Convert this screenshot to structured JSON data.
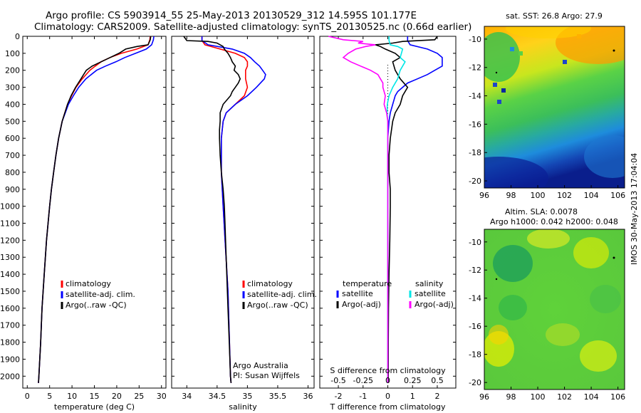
{
  "header": {
    "line1": "Argo profile: CS 5903914_55 25-May-2013 20130529_312 14.595S 101.177E",
    "line2": "Climatology: CARS2009. Satellite-adjusted climatology: synTS_20130525.nc (0.66d earlier)"
  },
  "colors": {
    "climatology": "#ff0000",
    "satellite": "#0000ff",
    "argo": "#000000",
    "argo_s": "#ff00ff",
    "satellite_s": "#00e6e6"
  },
  "chart_data": [
    {
      "id": "temperature",
      "type": "line",
      "xlabel": "temperature (deg C)",
      "ylabel": "",
      "xlim": [
        -1,
        31
      ],
      "ylim": [
        2070,
        0
      ],
      "xticks": [
        "0",
        "5",
        "10",
        "15",
        "20",
        "25",
        "30"
      ],
      "yticks": [
        "0",
        "100",
        "200",
        "300",
        "400",
        "500",
        "600",
        "700",
        "800",
        "900",
        "1000",
        "1100",
        "1200",
        "1300",
        "1400",
        "1500",
        "1600",
        "1700",
        "1800",
        "1900",
        "2000"
      ],
      "legend": [
        "climatology",
        "satellite-adj. clim.",
        "Argo(..raw -QC)"
      ],
      "legend_position": "lower-center",
      "series": [
        {
          "name": "climatology",
          "color_key": "climatology",
          "depth": [
            0,
            20,
            50,
            75,
            100,
            125,
            150,
            175,
            200,
            250,
            300,
            350,
            400,
            500,
            600,
            700,
            800,
            900,
            1000,
            1200,
            1400,
            1600,
            1800,
            2000,
            2040
          ],
          "values": [
            27.5,
            27.4,
            27.0,
            24.5,
            21.0,
            18.5,
            16.5,
            15.2,
            14.0,
            12.3,
            10.9,
            9.9,
            9.0,
            7.8,
            7.0,
            6.4,
            5.9,
            5.4,
            5.0,
            4.3,
            3.8,
            3.3,
            3.0,
            2.6,
            2.5
          ]
        },
        {
          "name": "satellite-adj. clim.",
          "color_key": "satellite",
          "depth": [
            0,
            20,
            50,
            75,
            100,
            125,
            150,
            175,
            200,
            250,
            300,
            350,
            400,
            500,
            600,
            700,
            800,
            900,
            1000,
            1200,
            1400,
            1600,
            1800,
            2000,
            2040
          ],
          "values": [
            28.3,
            28.2,
            27.8,
            26.6,
            24.2,
            21.8,
            19.8,
            17.5,
            15.5,
            13.1,
            11.5,
            10.3,
            9.2,
            7.8,
            7.0,
            6.4,
            5.9,
            5.4,
            5.0,
            4.3,
            3.8,
            3.3,
            3.0,
            2.6,
            2.5
          ]
        },
        {
          "name": "Argo(..raw -QC)",
          "color_key": "argo",
          "depth": [
            0,
            20,
            50,
            60,
            75,
            100,
            125,
            150,
            175,
            200,
            225,
            250,
            300,
            350,
            400,
            500,
            600,
            700,
            800,
            900,
            1000,
            1200,
            1400,
            1600,
            1800,
            2000,
            2040
          ],
          "values": [
            27.6,
            27.5,
            27.0,
            24.5,
            22.0,
            20.5,
            18.5,
            16.5,
            14.5,
            13.2,
            12.6,
            12.0,
            10.8,
            9.8,
            9.0,
            7.8,
            7.0,
            6.4,
            5.9,
            5.4,
            5.0,
            4.3,
            3.8,
            3.3,
            3.0,
            2.6,
            2.5
          ]
        }
      ]
    },
    {
      "id": "salinity",
      "type": "line",
      "xlabel": "salinity",
      "ylabel": "",
      "xlim": [
        33.75,
        36.1
      ],
      "ylim": [
        2070,
        0
      ],
      "xticks": [
        "34",
        "34.5",
        "35",
        "35.5",
        "36"
      ],
      "legend": [
        "climatology",
        "satellite-adj. clim.",
        "Argo(..raw -QC)"
      ],
      "legend_position": "lower-center",
      "annotation": [
        "Argo Australia",
        "PI: Susan Wijffels"
      ],
      "series": [
        {
          "name": "climatology",
          "color_key": "climatology",
          "depth": [
            0,
            25,
            50,
            75,
            100,
            125,
            150,
            175,
            200,
            250,
            300,
            350,
            400,
            450,
            500,
            600,
            800,
            1000,
            1500,
            2000,
            2040
          ],
          "values": [
            34.25,
            34.25,
            34.3,
            34.55,
            34.8,
            34.95,
            35.0,
            35.0,
            34.97,
            34.97,
            35.0,
            34.95,
            34.8,
            34.65,
            34.6,
            34.57,
            34.57,
            34.6,
            34.68,
            34.72,
            34.73
          ]
        },
        {
          "name": "satellite-adj. clim.",
          "color_key": "satellite",
          "depth": [
            0,
            25,
            50,
            75,
            100,
            125,
            150,
            175,
            200,
            225,
            250,
            300,
            350,
            400,
            450,
            500,
            600,
            800,
            1000,
            1500,
            2000,
            2040
          ],
          "values": [
            34.25,
            34.25,
            34.35,
            34.75,
            34.95,
            35.05,
            35.12,
            35.2,
            35.25,
            35.3,
            35.28,
            35.15,
            35.0,
            34.8,
            34.65,
            34.6,
            34.57,
            34.57,
            34.6,
            34.68,
            34.72,
            34.73
          ]
        },
        {
          "name": "Argo(..raw -QC)",
          "color_key": "argo",
          "depth": [
            0,
            25,
            30,
            40,
            50,
            60,
            75,
            100,
            125,
            150,
            175,
            200,
            225,
            250,
            275,
            300,
            325,
            350,
            400,
            450,
            500,
            550,
            600,
            700,
            800,
            900,
            1000,
            1100,
            1200,
            1400,
            1600,
            1800,
            2000,
            2040
          ],
          "values": [
            33.95,
            34.0,
            34.35,
            34.5,
            34.55,
            34.6,
            34.62,
            34.68,
            34.72,
            34.75,
            34.8,
            34.78,
            34.85,
            34.88,
            34.85,
            34.8,
            34.75,
            34.72,
            34.6,
            34.55,
            34.55,
            34.54,
            34.54,
            34.55,
            34.57,
            34.6,
            34.62,
            34.63,
            34.64,
            34.66,
            34.68,
            34.7,
            34.72,
            34.73
          ]
        }
      ]
    },
    {
      "id": "difference",
      "type": "line",
      "xlabel": "T difference from climatology",
      "xlabel_top": "S difference from climatology",
      "ylabel": "",
      "xlim": [
        -2.75,
        2.75
      ],
      "ylim": [
        2070,
        0
      ],
      "xticks": [
        "-2",
        "-1",
        "0",
        "1",
        "2"
      ],
      "s_ticks": [
        "-0.5",
        "-0.25",
        "0",
        "0.25",
        "0.5"
      ],
      "legend_titles": [
        "temperature",
        "salinity"
      ],
      "legend": [
        "satellite",
        "Argo(-adj)",
        "satellite",
        "Argo(-adj)"
      ],
      "series": [
        {
          "name": "satellite",
          "group": "temperature",
          "color_key": "satellite",
          "depth": [
            0,
            25,
            50,
            75,
            100,
            125,
            150,
            175,
            200,
            225,
            250,
            275,
            300,
            325,
            350,
            400,
            450,
            500,
            600,
            800,
            1000,
            1500,
            2000,
            2040
          ],
          "values": [
            0.8,
            0.8,
            0.9,
            1.6,
            2.0,
            2.2,
            2.2,
            2.2,
            1.9,
            1.6,
            1.2,
            0.8,
            0.6,
            0.4,
            0.3,
            0.2,
            0.1,
            0.05,
            0,
            0,
            0,
            0,
            0,
            0
          ]
        },
        {
          "name": "Argo(-adj)",
          "group": "temperature",
          "color_key": "argo",
          "depth": [
            0,
            20,
            30,
            40,
            50,
            60,
            75,
            100,
            125,
            150,
            200,
            250,
            300,
            350,
            400,
            450,
            500,
            600,
            700,
            800,
            900,
            1000,
            1200,
            1400,
            1600,
            1800,
            2000,
            2040
          ],
          "values": [
            2.0,
            1.9,
            0.6,
            0.2,
            -0.5,
            -0.3,
            -0.1,
            0.3,
            0.5,
            0.2,
            0.3,
            0.5,
            0.8,
            0.6,
            0.5,
            0.3,
            0.2,
            0.1,
            0.05,
            0.05,
            0.1,
            0.1,
            0.08,
            0.05,
            0.03,
            0.02,
            0.02,
            0.02
          ]
        },
        {
          "name": "satellite",
          "group": "salinity",
          "color_key": "satellite_s",
          "depth": [
            0,
            25,
            50,
            60,
            75,
            100,
            125,
            150,
            175,
            200,
            225,
            250,
            300,
            350,
            400,
            450,
            500,
            600,
            800,
            1000,
            1500,
            2000,
            2040
          ],
          "values": [
            0.05,
            0.05,
            0.1,
            0.4,
            0.6,
            0.55,
            0.5,
            0.7,
            0.6,
            0.5,
            0.45,
            0.4,
            0.2,
            0.05,
            -0.02,
            -0.03,
            0,
            0,
            0,
            0,
            0,
            0,
            0
          ]
        },
        {
          "name": "Argo(-adj)",
          "group": "salinity",
          "color_key": "argo_s",
          "depth": [
            0,
            20,
            30,
            40,
            50,
            60,
            75,
            100,
            125,
            150,
            175,
            200,
            225,
            250,
            275,
            300,
            350,
            400,
            450,
            500,
            600,
            800,
            1000,
            1500,
            2000,
            2040
          ],
          "values": [
            -2.4,
            -1.8,
            -1.0,
            -1.2,
            -0.5,
            -0.9,
            -1.3,
            -1.6,
            -1.8,
            -1.5,
            -1.1,
            -0.7,
            -0.4,
            -0.3,
            -0.2,
            -0.2,
            -0.1,
            -0.15,
            -0.05,
            0,
            0,
            0,
            0,
            0,
            0,
            0
          ]
        }
      ]
    }
  ],
  "maps": [
    {
      "id": "sst",
      "title": "sat. SST: 26.8 Argo: 27.9",
      "xticks": [
        "96",
        "98",
        "100",
        "102",
        "104",
        "106"
      ],
      "yticks": [
        "-10",
        "-12",
        "-14",
        "-16",
        "-18",
        "-20"
      ],
      "xlim": [
        96,
        106.5
      ],
      "ylim": [
        -20.5,
        -9.1
      ],
      "marker": {
        "lon": 101.177,
        "lat": -14.595
      }
    },
    {
      "id": "sla",
      "title": "Altim. SLA: 0.0078",
      "subtitle": "Argo h1000: 0.042 h2000: 0.048",
      "xticks": [
        "96",
        "98",
        "100",
        "102",
        "104",
        "106"
      ],
      "yticks": [
        "-10",
        "-12",
        "-14",
        "-16",
        "-18",
        "-20"
      ],
      "xlim": [
        96,
        106.5
      ],
      "ylim": [
        -20.5,
        -9.1
      ],
      "marker": {
        "lon": 101.177,
        "lat": -14.595
      }
    }
  ],
  "footer": {
    "stamp": "IMOS 30-May-2013 17:04:04"
  }
}
